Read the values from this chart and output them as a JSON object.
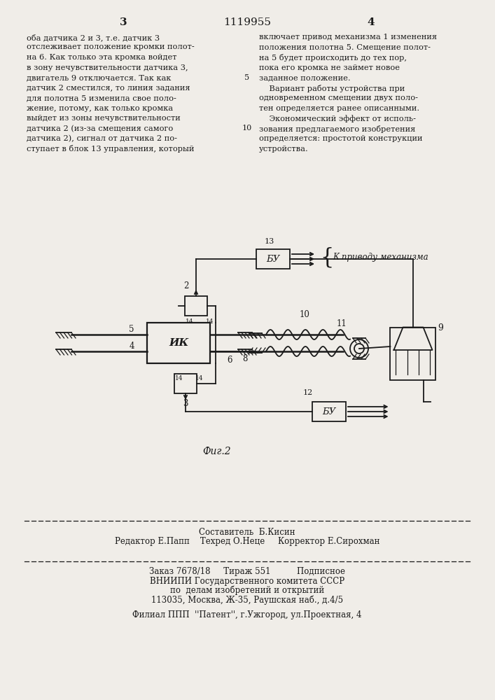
{
  "page_number_left": "3",
  "patent_number": "1119955",
  "page_number_right": "4",
  "text_left": "оба датчика 2 и 3, т.е. датчик 3\nотслеживает положение кромки полот-\nна 6. Как только эта кромка войдет\nв зону нечувствительности датчика 3,\nдвигатель 9 отключается. Так как\nдатчик 2 сместился, то линия задания\nдля полотна 5 изменила свое поло-\nжение, потому, как только кромка\nвыйдет из зоны нечувствительности\nдатчика 2 (из-за смещения самого\nдатчика 2), сигнал от датчика 2 по-\nступает в блок 13 управления, который",
  "text_right": "включает привод механизма 1 изменения\nположения полотна 5. Смещение полот-\nна 5 будет происходить до тех пор,\nпока его кромка не займет новое\nзаданное положение.\n    Вариант работы устройства при\nодновременном смещении двух поло-\nтен определяется ранее описанными.\n    Экономический эффект от исполь-\nзования предлагаемого изобретения\nопределяется: простотой конструкции\nустройства.",
  "fig_caption": "Фиг.2",
  "footer_line1": "Составитель  Б.Кисин",
  "footer_line2": "Редактор Е.Папп    Техред О.Неце     Корректор Е.Сирохман",
  "footer_line3": "Заказ 7678/18     Тираж 551          Подписное",
  "footer_line4": "ВНИИПИ Государственного комитета СССР",
  "footer_line5": "по  делам изобретений и открытий",
  "footer_line6": "113035, Москва, Ж-35, Раушская наб., д.4/5",
  "footer_line7": "Филиал ППП  ''Патент'', г.Ужгород, ул.Проектная, 4",
  "bg_color": "#f0ede8"
}
